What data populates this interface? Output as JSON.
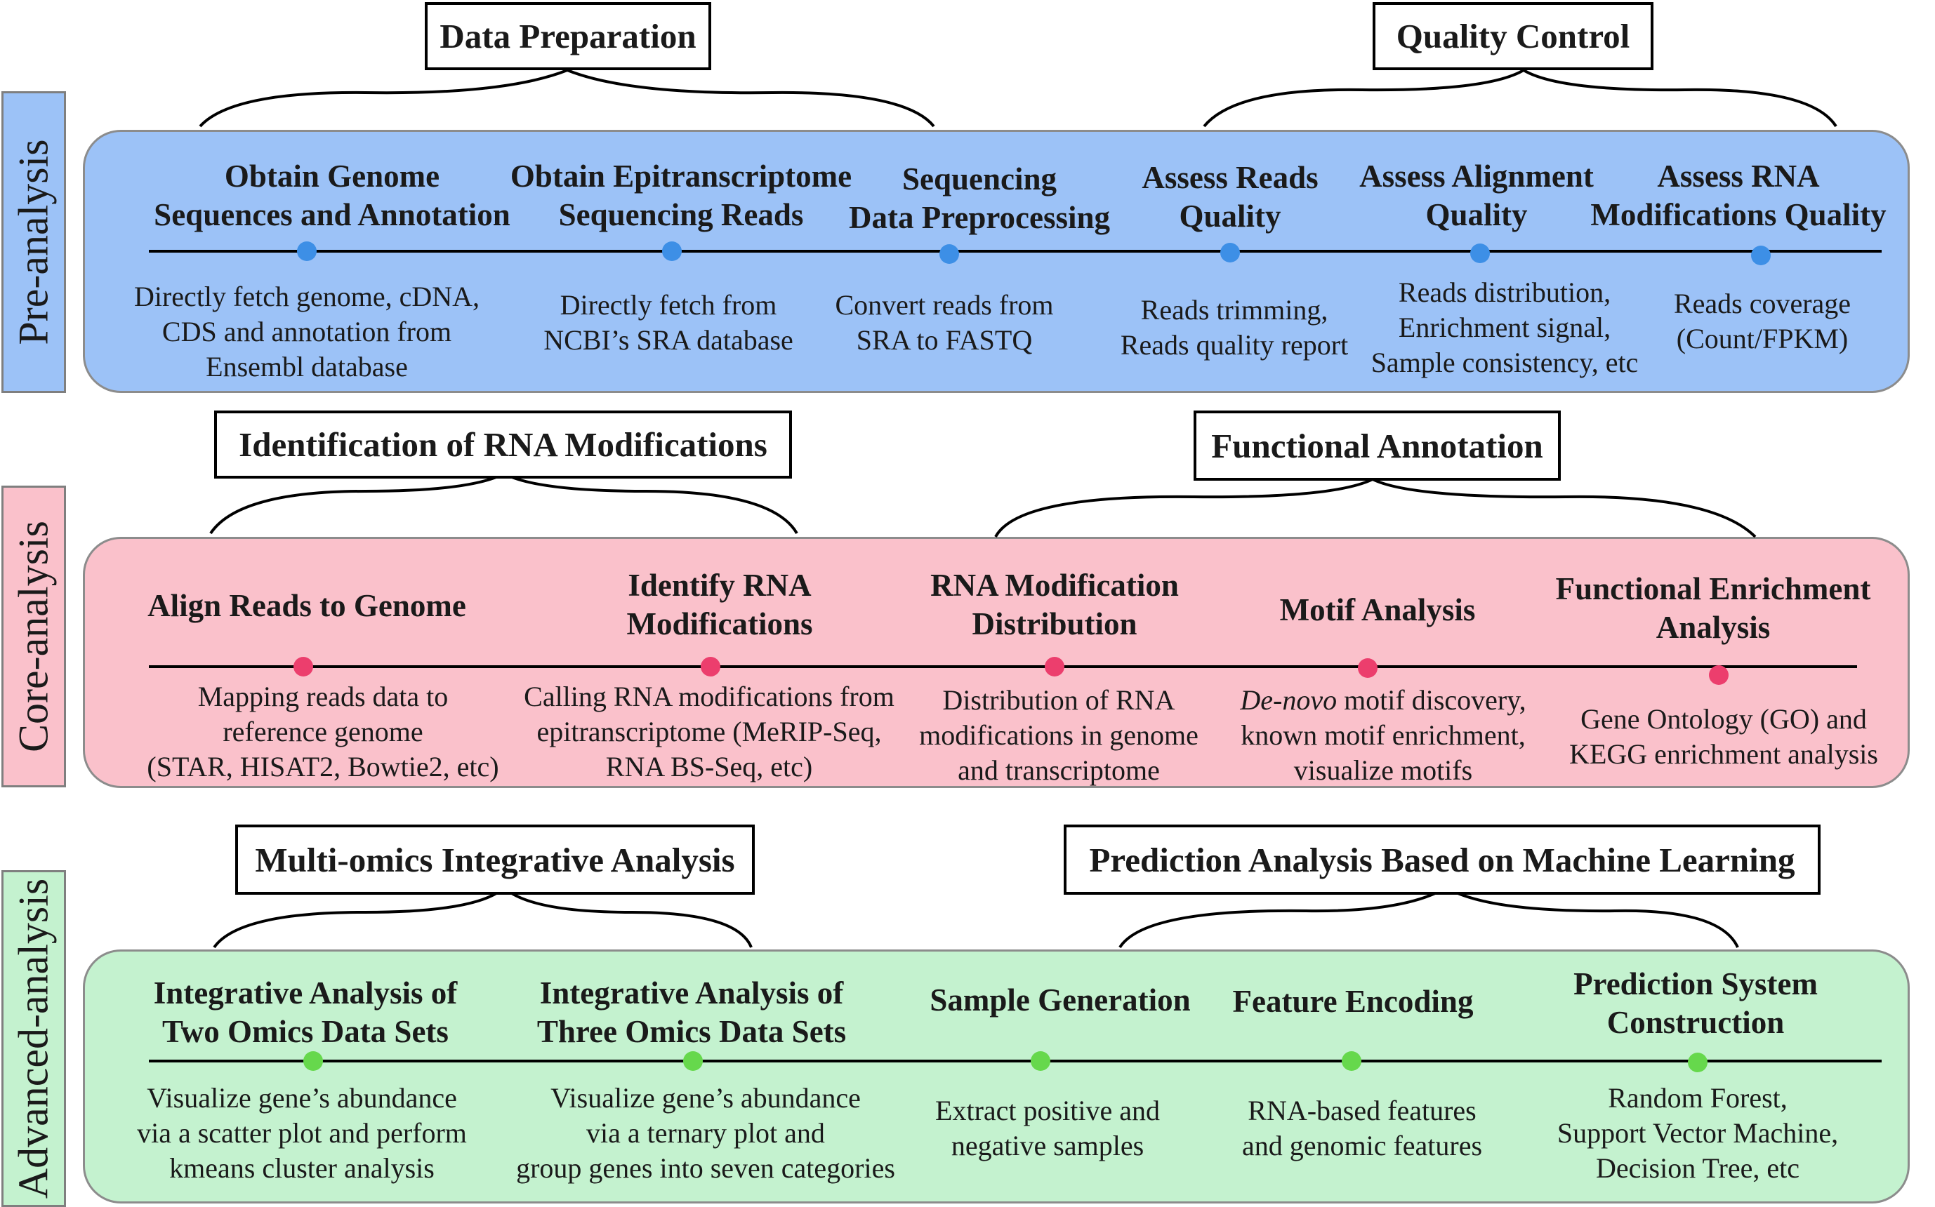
{
  "colors": {
    "pre": "#9cc2f7",
    "core": "#fac1cb",
    "adv": "#c4f2cf",
    "pre_dot": "#3d8fe6",
    "core_dot": "#ec3e6d",
    "adv_dot": "#66d84c"
  },
  "sections": [
    {
      "label": "Pre-analysis",
      "headers": [
        "Data Preparation",
        "Quality Control"
      ],
      "steps": [
        {
          "title": [
            "Obtain Genome",
            "Sequences and Annotation"
          ],
          "desc": [
            "Directly fetch genome, cDNA,",
            "CDS and annotation from",
            "Ensembl database"
          ]
        },
        {
          "title": [
            "Obtain Epitranscriptome",
            "Sequencing Reads"
          ],
          "desc": [
            "Directly fetch from",
            "NCBI’s SRA database"
          ]
        },
        {
          "title": [
            "Sequencing",
            "Data Preprocessing"
          ],
          "desc": [
            "Convert reads from",
            "SRA to FASTQ"
          ]
        },
        {
          "title": [
            "Assess Reads",
            "Quality"
          ],
          "desc": [
            "Reads trimming,",
            "Reads quality report"
          ]
        },
        {
          "title": [
            "Assess Alignment",
            "Quality"
          ],
          "desc": [
            "Reads distribution,",
            "Enrichment signal,",
            "Sample consistency, etc"
          ]
        },
        {
          "title": [
            "Assess RNA",
            "Modifications Quality"
          ],
          "desc": [
            "Reads coverage",
            "(Count/FPKM)"
          ]
        }
      ]
    },
    {
      "label": "Core-analysis",
      "headers": [
        "Identification of RNA Modifications",
        "Functional Annotation"
      ],
      "steps": [
        {
          "title": [
            "Align Reads to Genome"
          ],
          "desc": [
            "Mapping reads data to",
            "reference genome",
            "(STAR, HISAT2, Bowtie2, etc)"
          ]
        },
        {
          "title": [
            "Identify RNA",
            "Modifications"
          ],
          "desc": [
            "Calling RNA modifications from",
            "epitranscriptome (MeRIP-Seq,",
            "RNA BS-Seq, etc)"
          ]
        },
        {
          "title": [
            "RNA Modification",
            "Distribution"
          ],
          "desc": [
            "Distribution of RNA",
            "modifications in genome",
            "and transcriptome"
          ]
        },
        {
          "title": [
            "Motif Analysis"
          ],
          "desc_italic": "De-novo",
          "desc": [
            " motif  discovery,",
            "known motif enrichment,",
            "visualize motifs"
          ]
        },
        {
          "title": [
            "Functional Enrichment",
            "Analysis"
          ],
          "desc": [
            "Gene Ontology (GO) and",
            "KEGG enrichment analysis"
          ]
        }
      ]
    },
    {
      "label": "Advanced-analysis",
      "headers": [
        "Multi-omics Integrative Analysis",
        "Prediction Analysis Based on Machine Learning"
      ],
      "steps": [
        {
          "title": [
            "Integrative Analysis of",
            "Two Omics Data Sets"
          ],
          "desc": [
            "Visualize gene’s abundance",
            "via a scatter plot and perform",
            "kmeans cluster analysis"
          ]
        },
        {
          "title": [
            "Integrative Analysis of",
            "Three Omics Data Sets"
          ],
          "desc": [
            "Visualize gene’s abundance",
            "via a ternary plot and",
            "group genes into seven categories"
          ]
        },
        {
          "title": [
            "Sample Generation"
          ],
          "desc": [
            "Extract positive and",
            "negative samples"
          ]
        },
        {
          "title": [
            "Feature Encoding"
          ],
          "desc": [
            "RNA-based features",
            "and genomic features"
          ]
        },
        {
          "title": [
            "Prediction System",
            "Construction"
          ],
          "desc": [
            "Random Forest,",
            "Support Vector Machine,",
            "Decision Tree, etc"
          ]
        }
      ]
    }
  ]
}
